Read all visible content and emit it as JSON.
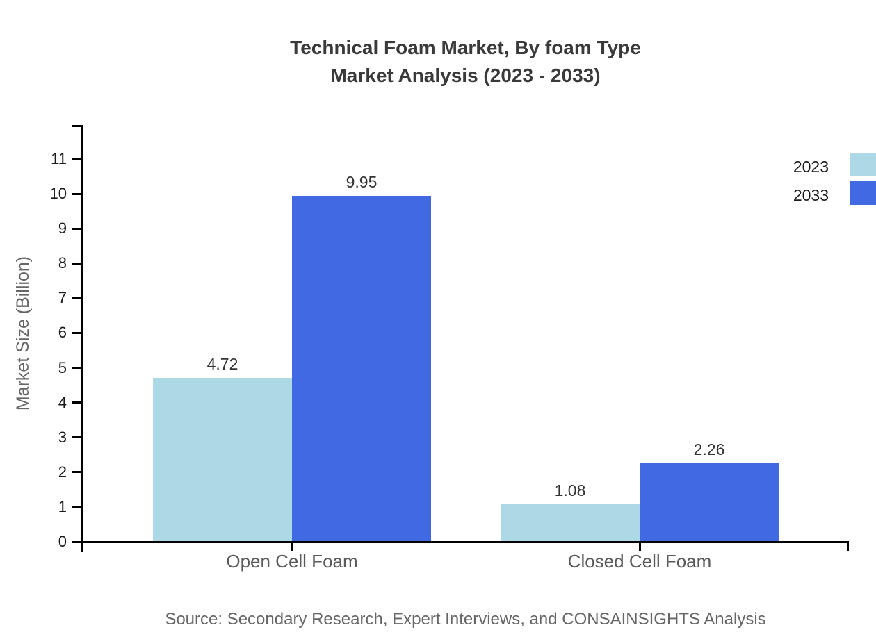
{
  "chart_data": {
    "type": "bar",
    "title_line1": "Technical Foam Market, By foam Type",
    "title_line2": "Market Analysis (2023 - 2033)",
    "categories": [
      "Open Cell Foam",
      "Closed Cell Foam"
    ],
    "series": [
      {
        "name": "2023",
        "color": "#ADD8E6",
        "values": [
          4.72,
          1.08
        ]
      },
      {
        "name": "2033",
        "color": "#4169E1",
        "values": [
          9.95,
          2.26
        ]
      }
    ],
    "ylabel": "Market Size (Billion)",
    "ylim": [
      0,
      11
    ],
    "yticks": [
      0,
      1,
      2,
      3,
      4,
      5,
      6,
      7,
      8,
      9,
      10,
      11
    ],
    "grid": false,
    "legend_position": "top-right",
    "source": "Source: Secondary Research, Expert Interviews, and CONSAINSIGHTS Analysis"
  }
}
